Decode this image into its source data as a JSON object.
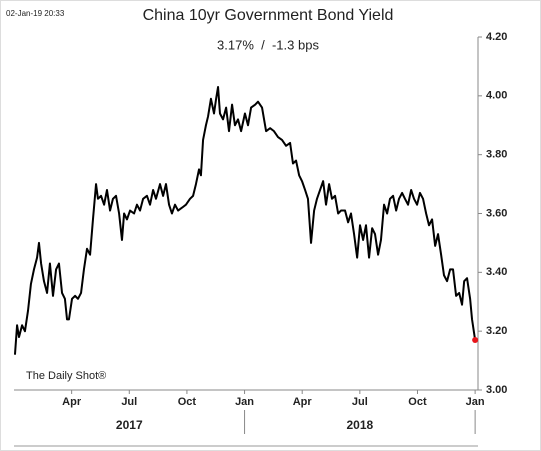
{
  "timestamp": "02-Jan-19 20:33",
  "source": "The Daily Shot®",
  "chart_data": {
    "type": "line",
    "title": "China 10yr Government Bond Yield",
    "subtitle": "3.17%  /  -1.3 bps",
    "x": [
      0.05,
      0.16,
      0.26,
      0.42,
      0.57,
      0.73,
      0.88,
      1.04,
      1.2,
      1.3,
      1.41,
      1.56,
      1.72,
      1.87,
      2.03,
      2.19,
      2.34,
      2.5,
      2.65,
      2.76,
      2.86,
      3.02,
      3.18,
      3.33,
      3.49,
      3.64,
      3.8,
      3.96,
      4.11,
      4.27,
      4.37,
      4.53,
      4.69,
      4.84,
      5.0,
      5.15,
      5.31,
      5.47,
      5.62,
      5.73,
      5.88,
      6.04,
      6.25,
      6.4,
      6.56,
      6.72,
      6.92,
      7.08,
      7.24,
      7.39,
      7.6,
      7.76,
      7.91,
      8.07,
      8.22,
      8.38,
      8.54,
      8.75,
      8.95,
      9.16,
      9.32,
      9.47,
      9.63,
      9.73,
      9.84,
      9.99,
      10.1,
      10.25,
      10.41,
      10.52,
      10.62,
      10.72,
      10.88,
      11.04,
      11.19,
      11.35,
      11.5,
      11.66,
      11.82,
      12.02,
      12.18,
      12.34,
      12.55,
      12.7,
      12.91,
      13.12,
      13.33,
      13.53,
      13.74,
      13.95,
      14.16,
      14.37,
      14.52,
      14.68,
      14.84,
      14.99,
      15.15,
      15.3,
      15.46,
      15.62,
      15.77,
      15.93,
      16.09,
      16.24,
      16.4,
      16.55,
      16.71,
      16.87,
      17.02,
      17.23,
      17.39,
      17.54,
      17.7,
      17.86,
      18.01,
      18.17,
      18.32,
      18.48,
      18.64,
      18.79,
      18.95,
      19.1,
      19.26,
      19.42,
      19.57,
      19.73,
      19.89,
      20.04,
      20.2,
      20.35,
      20.51,
      20.67,
      20.82,
      20.98,
      21.13,
      21.29,
      21.45,
      21.6,
      21.76,
      21.92,
      22.07,
      22.23,
      22.38,
      22.54,
      22.7,
      22.85,
      23.01,
      23.17,
      23.32,
      23.43,
      23.58,
      23.74,
      23.84,
      24.0
    ],
    "series": [
      {
        "color": "#000000",
        "values": [
          3.12,
          3.22,
          3.18,
          3.22,
          3.2,
          3.27,
          3.36,
          3.41,
          3.45,
          3.5,
          3.43,
          3.37,
          3.33,
          3.43,
          3.32,
          3.41,
          3.43,
          3.33,
          3.31,
          3.24,
          3.24,
          3.31,
          3.32,
          3.31,
          3.33,
          3.41,
          3.48,
          3.46,
          3.58,
          3.7,
          3.65,
          3.66,
          3.63,
          3.68,
          3.61,
          3.65,
          3.66,
          3.6,
          3.51,
          3.6,
          3.58,
          3.61,
          3.6,
          3.63,
          3.61,
          3.65,
          3.66,
          3.63,
          3.68,
          3.65,
          3.7,
          3.66,
          3.7,
          3.63,
          3.6,
          3.63,
          3.61,
          3.62,
          3.63,
          3.65,
          3.66,
          3.7,
          3.75,
          3.73,
          3.85,
          3.9,
          3.93,
          3.99,
          3.94,
          3.99,
          4.03,
          3.94,
          3.92,
          3.96,
          3.88,
          3.97,
          3.9,
          3.92,
          3.88,
          3.94,
          3.9,
          3.96,
          3.97,
          3.98,
          3.96,
          3.88,
          3.89,
          3.88,
          3.86,
          3.85,
          3.83,
          3.84,
          3.77,
          3.78,
          3.73,
          3.71,
          3.68,
          3.65,
          3.5,
          3.61,
          3.65,
          3.68,
          3.71,
          3.63,
          3.7,
          3.65,
          3.66,
          3.6,
          3.61,
          3.61,
          3.57,
          3.6,
          3.53,
          3.45,
          3.56,
          3.51,
          3.56,
          3.45,
          3.55,
          3.53,
          3.46,
          3.51,
          3.63,
          3.6,
          3.65,
          3.66,
          3.61,
          3.65,
          3.67,
          3.65,
          3.63,
          3.68,
          3.65,
          3.63,
          3.67,
          3.65,
          3.6,
          3.56,
          3.58,
          3.49,
          3.53,
          3.46,
          3.39,
          3.37,
          3.41,
          3.41,
          3.32,
          3.33,
          3.29,
          3.37,
          3.38,
          3.31,
          3.24,
          3.17
        ]
      }
    ],
    "end_marker_color": "#e8141a",
    "xlim": [
      0,
      24.15
    ],
    "xticks": [
      {
        "value": 3,
        "label": "Apr"
      },
      {
        "value": 6,
        "label": "Jul"
      },
      {
        "value": 9,
        "label": "Oct"
      },
      {
        "value": 12,
        "label": "Jan"
      },
      {
        "value": 15,
        "label": "Apr"
      },
      {
        "value": 18,
        "label": "Jul"
      },
      {
        "value": 21,
        "label": "Oct"
      },
      {
        "value": 24,
        "label": "Jan"
      }
    ],
    "year_labels": [
      {
        "value": 6,
        "label": "2017"
      },
      {
        "value": 18,
        "label": "2018"
      }
    ],
    "year_dividers": [
      12,
      24
    ],
    "ylim": [
      3.0,
      4.2
    ],
    "yticks": [
      {
        "value": 3.0,
        "label": "3.00"
      },
      {
        "value": 3.2,
        "label": "3.20"
      },
      {
        "value": 3.4,
        "label": "3.40"
      },
      {
        "value": 3.6,
        "label": "3.60"
      },
      {
        "value": 3.8,
        "label": "3.80"
      },
      {
        "value": 4.0,
        "label": "4.00"
      },
      {
        "value": 4.2,
        "label": "4.20"
      }
    ]
  }
}
